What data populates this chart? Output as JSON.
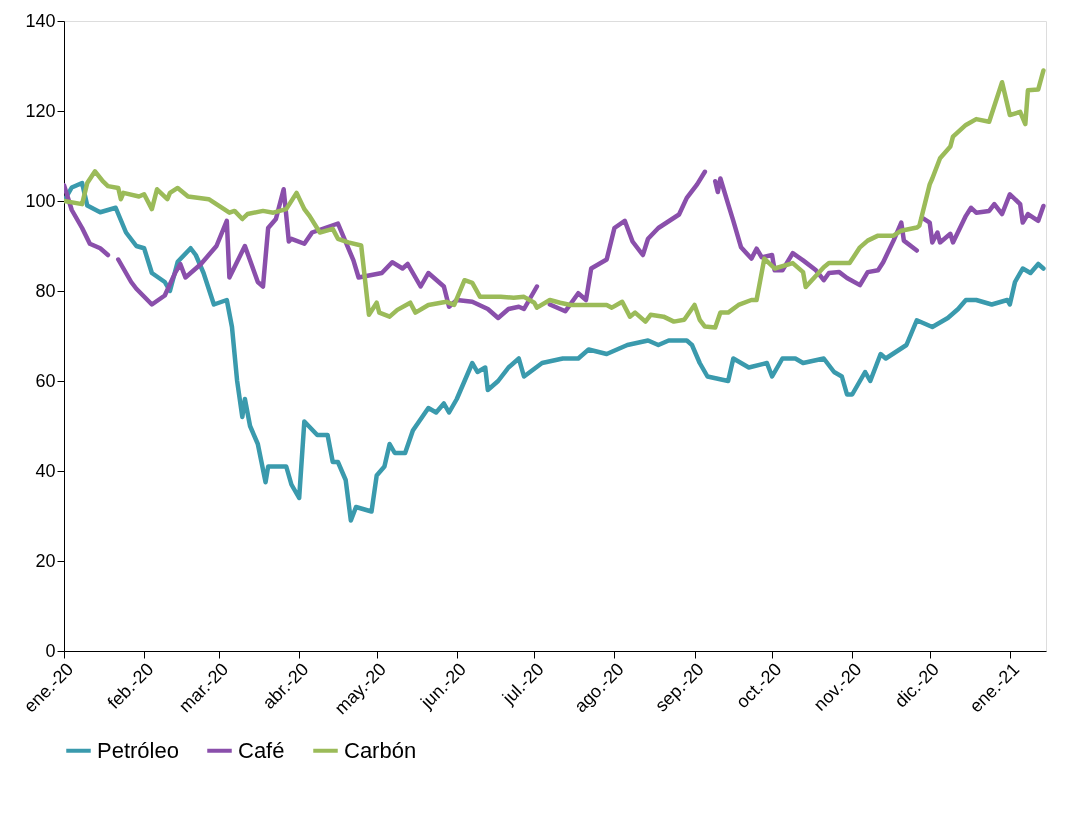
{
  "chart_data": {
    "type": "line",
    "legend": "bottom",
    "grid": false,
    "line_style": "solid",
    "marker": "none",
    "xlim": [
      "2020-01-01",
      "2021-01-15"
    ],
    "xticks": [
      {
        "value": "2020-01-01",
        "label": "ene.-20"
      },
      {
        "value": "2020-02-01",
        "label": "feb.-20"
      },
      {
        "value": "2020-03-01",
        "label": "mar.-20"
      },
      {
        "value": "2020-04-01",
        "label": "abr.-20"
      },
      {
        "value": "2020-05-01",
        "label": "may.-20"
      },
      {
        "value": "2020-06-01",
        "label": "jun.-20"
      },
      {
        "value": "2020-07-01",
        "label": "jul.-20"
      },
      {
        "value": "2020-08-01",
        "label": "ago.-20"
      },
      {
        "value": "2020-09-01",
        "label": "sep.-20"
      },
      {
        "value": "2020-10-01",
        "label": "oct.-20"
      },
      {
        "value": "2020-11-01",
        "label": "nov.-20"
      },
      {
        "value": "2020-12-01",
        "label": "dic.-20"
      },
      {
        "value": "2021-01-01",
        "label": "ene.-21"
      }
    ],
    "ylim": [
      0,
      140
    ],
    "yticks": [
      0,
      20,
      40,
      60,
      80,
      100,
      120,
      140
    ],
    "series": [
      {
        "name": "Petróleo",
        "color": "#3a9aad",
        "x": [
          "2020-01-01",
          "2020-01-04",
          "2020-01-08",
          "2020-01-10",
          "2020-01-15",
          "2020-01-21",
          "2020-01-25",
          "2020-01-29",
          "2020-02-01",
          "2020-02-04",
          "2020-02-09",
          "2020-02-11",
          "2020-02-14",
          "2020-02-19",
          "2020-02-21",
          "2020-02-24",
          "2020-02-28",
          "2020-03-04",
          "2020-03-06",
          "2020-03-08",
          "2020-03-10",
          "2020-03-11",
          "2020-03-13",
          "2020-03-16",
          "2020-03-19",
          "2020-03-20",
          "2020-03-27",
          "2020-03-29",
          "2020-04-01",
          "2020-04-03",
          "2020-04-08",
          "2020-04-12",
          "2020-04-14",
          "2020-04-16",
          "2020-04-19",
          "2020-04-21",
          "2020-04-23",
          "2020-04-29",
          "2020-05-01",
          "2020-05-04",
          "2020-05-06",
          "2020-05-08",
          "2020-05-12",
          "2020-05-15",
          "2020-05-21",
          "2020-05-24",
          "2020-05-27",
          "2020-05-29",
          "2020-06-01",
          "2020-06-04",
          "2020-06-07",
          "2020-06-09",
          "2020-06-12",
          "2020-06-13",
          "2020-06-17",
          "2020-06-21",
          "2020-06-25",
          "2020-06-27",
          "2020-07-04",
          "2020-07-12",
          "2020-07-18",
          "2020-07-22",
          "2020-07-29",
          "2020-08-06",
          "2020-08-14",
          "2020-08-18",
          "2020-08-22",
          "2020-08-29",
          "2020-08-31",
          "2020-09-03",
          "2020-09-06",
          "2020-09-14",
          "2020-09-16",
          "2020-09-22",
          "2020-09-29",
          "2020-10-01",
          "2020-10-05",
          "2020-10-10",
          "2020-10-13",
          "2020-10-21",
          "2020-10-25",
          "2020-10-28",
          "2020-10-30",
          "2020-11-01",
          "2020-11-06",
          "2020-11-08",
          "2020-11-12",
          "2020-11-14",
          "2020-11-22",
          "2020-11-26",
          "2020-12-02",
          "2020-12-08",
          "2020-12-12",
          "2020-12-15",
          "2020-12-19",
          "2020-12-25",
          "2020-12-31",
          "2021-01-01",
          "2021-01-03",
          "2021-01-06",
          "2021-01-09",
          "2021-01-12",
          "2021-01-14"
        ],
        "values": [
          100,
          103,
          104,
          99,
          97.5,
          98.5,
          93,
          90,
          89.5,
          84,
          82,
          80,
          86.5,
          89.5,
          88,
          84,
          77,
          78,
          72,
          60,
          52,
          56,
          50,
          46,
          37.5,
          41,
          41,
          37,
          34,
          51,
          48,
          48,
          42,
          42,
          38,
          29,
          32,
          31,
          39,
          41,
          46,
          44,
          44,
          49,
          54,
          53,
          55,
          53,
          56,
          60,
          64,
          62,
          63,
          58,
          60,
          63,
          65,
          61,
          64,
          65,
          65,
          67,
          66,
          68,
          69,
          68,
          69,
          69,
          68,
          64,
          61,
          60,
          65,
          63,
          64,
          61,
          65,
          65,
          64,
          65,
          62,
          61,
          57,
          57,
          62,
          60,
          66,
          65,
          68,
          73.5,
          72,
          74,
          76,
          78,
          78,
          77,
          78,
          77,
          82,
          85,
          84,
          86,
          85
        ]
      },
      {
        "name": "Café",
        "color": "#8a4fab",
        "x": [
          "2020-01-01",
          "2020-01-04",
          "2020-01-08",
          "2020-01-11",
          "2020-01-15",
          "2020-01-18",
          "2020-01-20",
          "2020-01-22",
          "2020-01-27",
          "2020-01-29",
          "2020-02-04",
          "2020-02-09",
          "2020-02-13",
          "2020-02-15",
          "2020-02-17",
          "2020-02-23",
          "2020-02-26",
          "2020-02-29",
          "2020-03-04",
          "2020-03-05",
          "2020-03-11",
          "2020-03-16",
          "2020-03-18",
          "2020-03-20",
          "2020-03-23",
          "2020-03-26",
          "2020-03-28",
          "2020-03-29",
          "2020-04-03",
          "2020-04-06",
          "2020-04-16",
          "2020-04-22",
          "2020-04-24",
          "2020-05-03",
          "2020-05-07",
          "2020-05-11",
          "2020-05-13",
          "2020-05-18",
          "2020-05-21",
          "2020-05-25",
          "2020-05-27",
          "2020-05-29",
          "2020-06-01",
          "2020-06-07",
          "2020-06-13",
          "2020-06-17",
          "2020-06-21",
          "2020-06-25",
          "2020-06-27",
          "2020-07-02",
          "2020-07-04",
          "2020-07-07",
          "2020-07-13",
          "2020-07-18",
          "2020-07-21",
          "2020-07-23",
          "2020-07-29",
          "2020-08-01",
          "2020-08-05",
          "2020-08-08",
          "2020-08-12",
          "2020-08-14",
          "2020-08-18",
          "2020-08-26",
          "2020-08-29",
          "2020-09-02",
          "2020-09-05",
          "2020-09-07",
          "2020-09-09",
          "2020-09-10",
          "2020-09-11",
          "2020-09-14",
          "2020-09-16",
          "2020-09-19",
          "2020-09-23",
          "2020-09-25",
          "2020-09-27",
          "2020-10-01",
          "2020-10-02",
          "2020-10-05",
          "2020-10-09",
          "2020-10-13",
          "2020-10-18",
          "2020-10-21",
          "2020-10-23",
          "2020-10-27",
          "2020-10-30",
          "2020-11-04",
          "2020-11-07",
          "2020-11-11",
          "2020-11-13",
          "2020-11-17",
          "2020-11-20",
          "2020-11-21",
          "2020-11-26",
          "2020-11-27",
          "2020-11-28",
          "2020-12-01",
          "2020-12-02",
          "2020-12-04",
          "2020-12-05",
          "2020-12-09",
          "2020-12-10",
          "2020-12-15",
          "2020-12-17",
          "2020-12-19",
          "2020-12-24",
          "2020-12-26",
          "2020-12-29",
          "2021-01-01",
          "2021-01-05",
          "2021-01-06",
          "2021-01-08",
          "2021-01-12",
          "2021-01-14"
        ],
        "values": [
          103.5,
          98,
          94,
          90.5,
          89.5,
          88,
          null,
          87,
          82,
          80.5,
          77,
          79,
          84,
          86,
          83,
          86,
          88,
          90,
          95.6,
          83,
          90,
          82,
          81,
          94,
          96,
          102.6,
          91,
          91.6,
          90.5,
          93,
          95,
          86.8,
          83,
          84,
          86.4,
          85,
          86,
          81,
          84,
          82,
          81,
          76.5,
          78,
          77.6,
          76,
          74,
          76,
          76.5,
          76,
          81,
          null,
          77,
          75.5,
          79.5,
          78,
          85,
          87,
          94,
          95.6,
          91,
          88,
          91.6,
          94,
          97,
          100.7,
          103.7,
          106.5,
          null,
          104.4,
          102,
          105,
          99.3,
          95.6,
          89.7,
          87.2,
          89.4,
          87.5,
          88,
          84.6,
          84.6,
          88.4,
          86.8,
          84.6,
          82.4,
          84,
          84.2,
          82.9,
          81.3,
          84.2,
          84.6,
          86.4,
          91.2,
          95.2,
          91.2,
          89,
          null,
          96.3,
          95.2,
          90.8,
          93,
          90.8,
          92.7,
          90.8,
          96.7,
          98.5,
          97.4,
          97.8,
          99.3,
          97.1,
          101.5,
          99.3,
          95.2,
          97.1,
          95.6,
          98.9
        ]
      },
      {
        "name": "Carbón",
        "color": "#9bbb59",
        "x": [
          "2020-01-01",
          "2020-01-08",
          "2020-01-10",
          "2020-01-13",
          "2020-01-16",
          "2020-01-18",
          "2020-01-22",
          "2020-01-23",
          "2020-01-24",
          "2020-01-30",
          "2020-02-01",
          "2020-02-04",
          "2020-02-06",
          "2020-02-10",
          "2020-02-11",
          "2020-02-14",
          "2020-02-18",
          "2020-02-26",
          "2020-03-01",
          "2020-03-05",
          "2020-03-07",
          "2020-03-10",
          "2020-03-12",
          "2020-03-18",
          "2020-03-22",
          "2020-03-27",
          "2020-03-31",
          "2020-04-03",
          "2020-04-05",
          "2020-04-09",
          "2020-04-14",
          "2020-04-16",
          "2020-04-20",
          "2020-04-25",
          "2020-04-28",
          "2020-05-01",
          "2020-05-02",
          "2020-05-06",
          "2020-05-09",
          "2020-05-14",
          "2020-05-16",
          "2020-05-21",
          "2020-05-28",
          "2020-05-31",
          "2020-06-04",
          "2020-06-07",
          "2020-06-10",
          "2020-06-18",
          "2020-06-23",
          "2020-06-27",
          "2020-07-01",
          "2020-07-02",
          "2020-07-07",
          "2020-07-11",
          "2020-07-15",
          "2020-07-29",
          "2020-07-31",
          "2020-08-04",
          "2020-08-07",
          "2020-08-09",
          "2020-08-13",
          "2020-08-15",
          "2020-08-20",
          "2020-08-24",
          "2020-08-28",
          "2020-09-01",
          "2020-09-03",
          "2020-09-05",
          "2020-09-09",
          "2020-09-11",
          "2020-09-14",
          "2020-09-18",
          "2020-09-23",
          "2020-09-25",
          "2020-09-28",
          "2020-10-02",
          "2020-10-09",
          "2020-10-13",
          "2020-10-14",
          "2020-10-21",
          "2020-10-23",
          "2020-10-31",
          "2020-11-04",
          "2020-11-07",
          "2020-11-11",
          "2020-11-17",
          "2020-11-20",
          "2020-11-26",
          "2020-11-27",
          "2020-12-01",
          "2020-12-02",
          "2020-12-05",
          "2020-12-09",
          "2020-12-10",
          "2020-12-15",
          "2020-12-19",
          "2020-12-24",
          "2020-12-29",
          "2021-01-01",
          "2021-01-05",
          "2021-01-07",
          "2021-01-08",
          "2021-01-12",
          "2021-01-14"
        ],
        "values": [
          100,
          99.3,
          104,
          106.6,
          104.4,
          103.3,
          102.9,
          100.4,
          101.8,
          101,
          101.5,
          98.2,
          102.6,
          100.4,
          101.8,
          102.9,
          101,
          100.4,
          98.9,
          97.4,
          97.8,
          96,
          97.1,
          97.8,
          97.4,
          98.2,
          101.8,
          98.2,
          96.7,
          93,
          93.8,
          91.6,
          90.8,
          90.1,
          74.7,
          77.4,
          75.2,
          74.3,
          75.8,
          77.4,
          75.2,
          76.9,
          77.6,
          76.9,
          82.4,
          81.8,
          78.7,
          78.7,
          78.5,
          78.7,
          77.4,
          76.3,
          78,
          77.4,
          76.9,
          76.9,
          76.3,
          77.6,
          74.3,
          75.2,
          73.2,
          74.7,
          74.3,
          73.2,
          73.6,
          76.9,
          73.6,
          72.1,
          71.9,
          75.2,
          75.2,
          76.9,
          78,
          78,
          87.2,
          85,
          86.2,
          84.2,
          80.9,
          85.3,
          86.2,
          86.2,
          89.7,
          91.2,
          92.3,
          92.3,
          93.4,
          94.1,
          94.5,
          103.7,
          105,
          109.5,
          112.1,
          114.3,
          116.9,
          118.2,
          117.6,
          126.4,
          119.1,
          119.8,
          117.1,
          124.6,
          124.8,
          129
        ]
      }
    ]
  }
}
